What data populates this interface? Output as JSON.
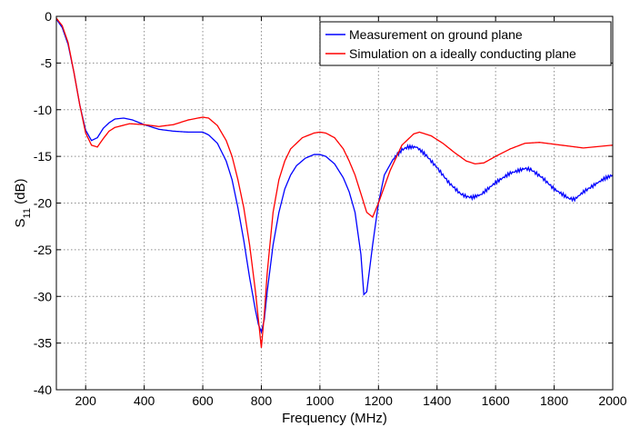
{
  "chart_data": {
    "type": "line",
    "xlabel": "Frequency (MHz)",
    "ylabel": {
      "base": "S",
      "sub": "11",
      "suffix": " (dB)"
    },
    "xlim": [
      100,
      2000
    ],
    "ylim": [
      -40,
      0
    ],
    "xticks": [
      200,
      400,
      600,
      800,
      1000,
      1200,
      1400,
      1600,
      1800,
      2000
    ],
    "yticks": [
      0,
      -5,
      -10,
      -15,
      -20,
      -25,
      -30,
      -35,
      -40
    ],
    "grid": true,
    "legend_position": "top-right",
    "series": [
      {
        "name": "Measurement on ground plane",
        "color": "#0000ff",
        "x": [
          100,
          120,
          140,
          160,
          180,
          200,
          220,
          240,
          260,
          280,
          300,
          330,
          360,
          400,
          450,
          500,
          550,
          600,
          620,
          650,
          680,
          700,
          720,
          740,
          760,
          780,
          790,
          800,
          810,
          820,
          840,
          860,
          880,
          900,
          920,
          950,
          980,
          1000,
          1020,
          1050,
          1080,
          1100,
          1120,
          1140,
          1150,
          1160,
          1180,
          1200,
          1220,
          1250,
          1280,
          1300,
          1330,
          1360,
          1400,
          1440,
          1480,
          1500,
          1520,
          1550,
          1600,
          1650,
          1700,
          1720,
          1760,
          1800,
          1850,
          1870,
          1900,
          1940,
          1970,
          2000
        ],
        "values": [
          -0.3,
          -1.2,
          -3.0,
          -6.0,
          -9.5,
          -12.2,
          -13.3,
          -13.0,
          -12.0,
          -11.4,
          -11.0,
          -10.9,
          -11.1,
          -11.6,
          -12.1,
          -12.3,
          -12.4,
          -12.4,
          -12.7,
          -13.6,
          -15.5,
          -17.5,
          -20.5,
          -24.0,
          -28.0,
          -31.5,
          -33.0,
          -33.8,
          -32.5,
          -29.5,
          -24.5,
          -21.0,
          -18.5,
          -17.0,
          -16.0,
          -15.2,
          -14.8,
          -14.8,
          -15.0,
          -15.8,
          -17.3,
          -18.8,
          -21.0,
          -25.5,
          -29.8,
          -29.5,
          -24.5,
          -20.0,
          -17.0,
          -15.3,
          -14.3,
          -14.0,
          -14.0,
          -14.8,
          -16.2,
          -17.8,
          -19.0,
          -19.3,
          -19.4,
          -19.1,
          -17.8,
          -16.8,
          -16.3,
          -16.4,
          -17.3,
          -18.5,
          -19.5,
          -19.6,
          -18.8,
          -18.0,
          -17.4,
          -17.0
        ]
      },
      {
        "name": "Simulation on a ideally conducting plane",
        "color": "#ff0000",
        "x": [
          100,
          120,
          140,
          160,
          180,
          200,
          220,
          240,
          260,
          280,
          300,
          350,
          400,
          450,
          500,
          550,
          600,
          620,
          650,
          680,
          700,
          720,
          740,
          760,
          780,
          790,
          800,
          810,
          820,
          840,
          860,
          880,
          900,
          940,
          980,
          1000,
          1020,
          1050,
          1080,
          1100,
          1120,
          1140,
          1160,
          1180,
          1200,
          1240,
          1280,
          1320,
          1340,
          1380,
          1420,
          1460,
          1500,
          1530,
          1560,
          1600,
          1650,
          1700,
          1750,
          1800,
          1900,
          2000
        ],
        "values": [
          -0.2,
          -1.0,
          -2.8,
          -6.0,
          -9.5,
          -12.5,
          -13.8,
          -14.0,
          -13.1,
          -12.3,
          -11.9,
          -11.5,
          -11.6,
          -11.8,
          -11.6,
          -11.1,
          -10.8,
          -10.9,
          -11.7,
          -13.3,
          -15.0,
          -17.5,
          -20.5,
          -24.5,
          -29.5,
          -32.5,
          -35.5,
          -32.0,
          -27.5,
          -21.0,
          -17.5,
          -15.5,
          -14.2,
          -13.0,
          -12.5,
          -12.4,
          -12.5,
          -13.0,
          -14.2,
          -15.5,
          -17.0,
          -19.0,
          -21.0,
          -21.5,
          -20.0,
          -16.5,
          -13.8,
          -12.6,
          -12.4,
          -12.8,
          -13.6,
          -14.6,
          -15.5,
          -15.8,
          -15.7,
          -15.0,
          -14.2,
          -13.6,
          -13.5,
          -13.7,
          -14.1,
          -13.8
        ]
      }
    ]
  }
}
